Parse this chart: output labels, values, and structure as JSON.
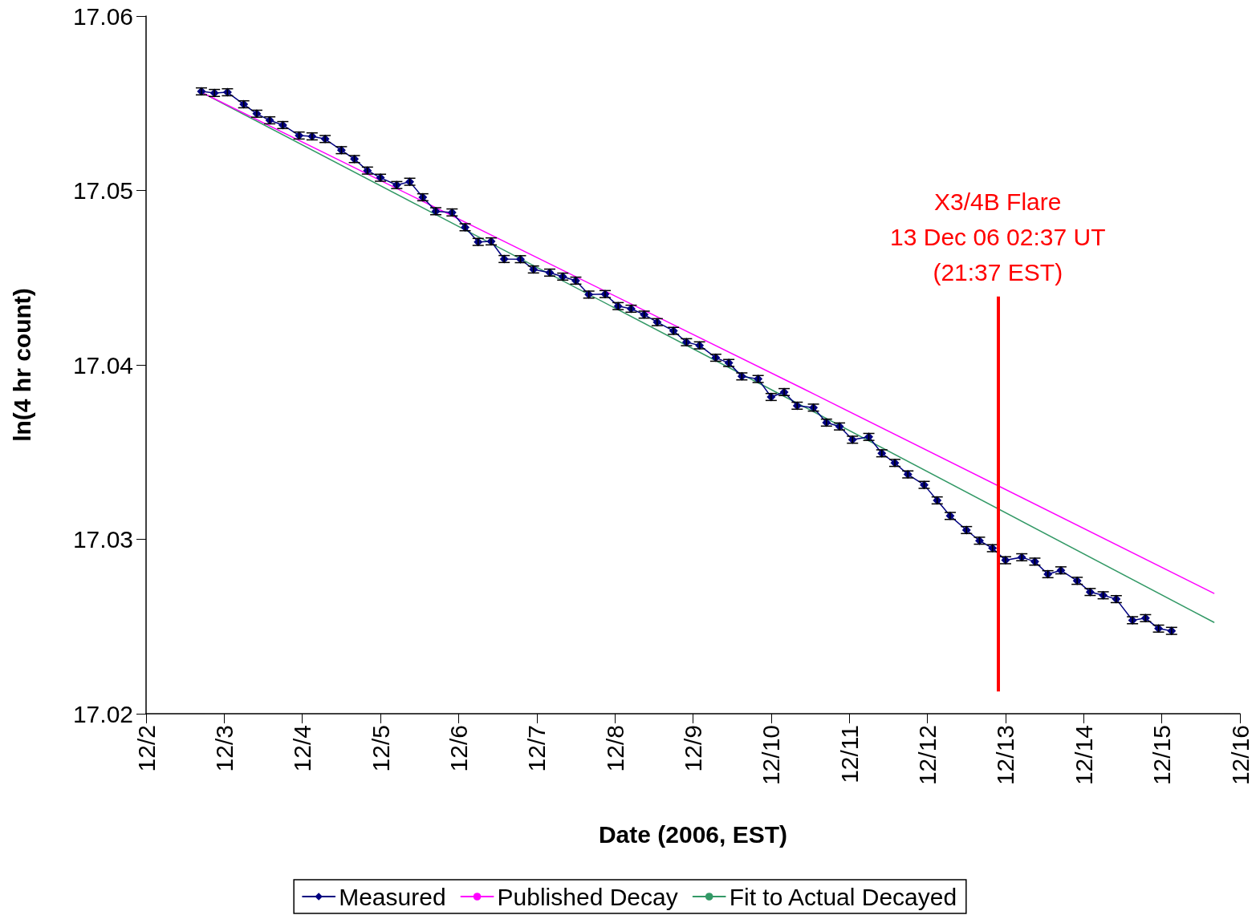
{
  "chart_data": {
    "type": "line",
    "xlabel": "Date (2006, EST)",
    "ylabel": "ln(4 hr count)",
    "xlim": [
      "2006-12-02",
      "2006-12-16"
    ],
    "xticks": [
      {
        "value": "2006-12-02",
        "label": "12/2"
      },
      {
        "value": "2006-12-03",
        "label": "12/3"
      },
      {
        "value": "2006-12-04",
        "label": "12/4"
      },
      {
        "value": "2006-12-05",
        "label": "12/5"
      },
      {
        "value": "2006-12-06",
        "label": "12/6"
      },
      {
        "value": "2006-12-07",
        "label": "12/7"
      },
      {
        "value": "2006-12-08",
        "label": "12/8"
      },
      {
        "value": "2006-12-09",
        "label": "12/9"
      },
      {
        "value": "2006-12-10",
        "label": "12/10"
      },
      {
        "value": "2006-12-11",
        "label": "12/11"
      },
      {
        "value": "2006-12-12",
        "label": "12/12"
      },
      {
        "value": "2006-12-13",
        "label": "12/13"
      },
      {
        "value": "2006-12-14",
        "label": "12/14"
      },
      {
        "value": "2006-12-15",
        "label": "12/15"
      },
      {
        "value": "2006-12-16",
        "label": "12/16"
      }
    ],
    "ylim": [
      17.02,
      17.06
    ],
    "yticks": [
      17.02,
      17.03,
      17.04,
      17.05,
      17.06
    ],
    "grid": false,
    "legend": "bottom",
    "series": [
      {
        "name": "Measured",
        "color": "#000080",
        "marker": "diamond",
        "x": [
          "2006-12-02T17:00",
          "2006-12-02T21:00",
          "2006-12-03T01:00",
          "2006-12-03T06:00",
          "2006-12-03T10:00",
          "2006-12-03T14:00",
          "2006-12-03T18:00",
          "2006-12-03T23:00",
          "2006-12-04T03:00",
          "2006-12-04T07:00",
          "2006-12-04T12:00",
          "2006-12-04T16:00",
          "2006-12-04T20:00",
          "2006-12-05T00:00",
          "2006-12-05T05:00",
          "2006-12-05T09:00",
          "2006-12-05T13:00",
          "2006-12-05T17:00",
          "2006-12-05T22:00",
          "2006-12-06T02:00",
          "2006-12-06T06:00",
          "2006-12-06T10:00",
          "2006-12-06T14:00",
          "2006-12-06T19:00",
          "2006-12-06T23:00",
          "2006-12-07T04:00",
          "2006-12-07T08:00",
          "2006-12-07T12:00",
          "2006-12-07T16:00",
          "2006-12-07T21:00",
          "2006-12-08T01:00",
          "2006-12-08T05:00",
          "2006-12-08T09:00",
          "2006-12-08T13:00",
          "2006-12-08T18:00",
          "2006-12-08T22:00",
          "2006-12-09T02:00",
          "2006-12-09T07:00",
          "2006-12-09T11:00",
          "2006-12-09T15:00",
          "2006-12-09T20:00",
          "2006-12-10T00:00",
          "2006-12-10T04:00",
          "2006-12-10T08:00",
          "2006-12-10T13:00",
          "2006-12-10T17:00",
          "2006-12-10T21:00",
          "2006-12-11T01:00",
          "2006-12-11T06:00",
          "2006-12-11T10:00",
          "2006-12-11T14:00",
          "2006-12-11T18:00",
          "2006-12-11T23:00",
          "2006-12-12T03:00",
          "2006-12-12T07:00",
          "2006-12-12T12:00",
          "2006-12-12T16:00",
          "2006-12-12T20:00",
          "2006-12-13T00:00",
          "2006-12-13T05:00",
          "2006-12-13T09:00",
          "2006-12-13T13:00",
          "2006-12-13T17:00",
          "2006-12-13T22:00",
          "2006-12-14T02:00",
          "2006-12-14T06:00",
          "2006-12-14T10:00",
          "2006-12-14T15:00",
          "2006-12-14T19:00",
          "2006-12-14T23:00",
          "2006-12-15T03:00"
        ],
        "values": [
          17.05568,
          17.05559,
          17.05563,
          17.05494,
          17.0544,
          17.05402,
          17.05375,
          17.05315,
          17.0531,
          17.05295,
          17.05231,
          17.0518,
          17.05114,
          17.05073,
          17.05031,
          17.0505,
          17.04961,
          17.04881,
          17.04874,
          17.04789,
          17.04705,
          17.04708,
          17.04607,
          17.04606,
          17.04547,
          17.04529,
          17.04506,
          17.04483,
          17.04403,
          17.04406,
          17.04337,
          17.04322,
          17.04288,
          17.04245,
          17.04195,
          17.0413,
          17.04112,
          17.04041,
          17.04011,
          17.03934,
          17.03919,
          17.03816,
          17.03844,
          17.03766,
          17.03755,
          17.03669,
          17.03647,
          17.03571,
          17.03587,
          17.03493,
          17.03438,
          17.03372,
          17.03312,
          17.03223,
          17.03134,
          17.03053,
          17.02992,
          17.02949,
          17.0288,
          17.02897,
          17.02872,
          17.028,
          17.02822,
          17.02762,
          17.02698,
          17.02679,
          17.02657,
          17.02536,
          17.02548,
          17.02488,
          17.02475
        ],
        "errors": [
          0.0002,
          0.0002,
          0.0002,
          0.0002,
          0.0002,
          0.0002,
          0.0002,
          0.0002,
          0.0002,
          0.0002,
          0.0002,
          0.0002,
          0.0002,
          0.0002,
          0.0002,
          0.0002,
          0.0002,
          0.0002,
          0.0002,
          0.0002,
          0.0002,
          0.0002,
          0.0002,
          0.0002,
          0.0002,
          0.0002,
          0.0002,
          0.0002,
          0.0002,
          0.0002,
          0.0002,
          0.0002,
          0.0002,
          0.0002,
          0.0002,
          0.0002,
          0.0002,
          0.0002,
          0.0002,
          0.0002,
          0.0002,
          0.0002,
          0.0002,
          0.0002,
          0.0002,
          0.0002,
          0.0002,
          0.0002,
          0.0002,
          0.0002,
          0.0002,
          0.0002,
          0.0002,
          0.0002,
          0.0002,
          0.0002,
          0.0002,
          0.0002,
          0.0002,
          0.0002,
          0.0002,
          0.0002,
          0.0002,
          0.0002,
          0.0002,
          0.0002,
          0.0002,
          0.0002,
          0.0002,
          0.0002,
          0.0002
        ]
      },
      {
        "name": "Published Decay",
        "color": "#ff00ff",
        "marker": "none",
        "x": [
          "2006-12-02T17:00",
          "2006-12-10T10:00",
          "2006-12-15T16:00"
        ],
        "values": [
          17.05563,
          17.03862,
          17.0269
        ]
      },
      {
        "name": "Fit to Actual Decayed",
        "color": "#339966",
        "marker": "none",
        "x": [
          "2006-12-02T17:00",
          "2006-12-10T10:00",
          "2006-12-15T16:00"
        ],
        "values": [
          17.05563,
          17.03761,
          17.02524
        ]
      }
    ],
    "ref_lines": [
      {
        "axis": "x",
        "value": "2006-12-12T21:37",
        "label": "X3/4B Flare\n13 Dec 06 02:37 UT\n(21:37 EST)",
        "color": "#ff0000"
      }
    ]
  }
}
